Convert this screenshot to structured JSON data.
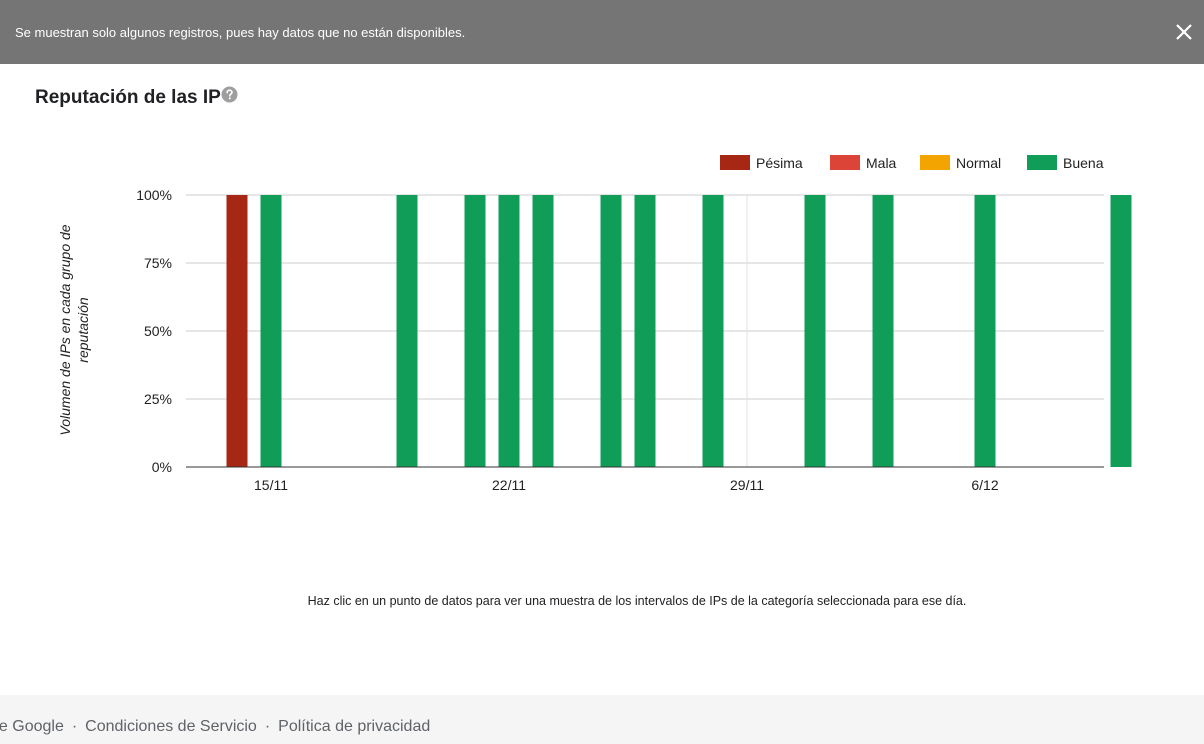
{
  "banner": {
    "message": "Se muestran solo algunos registros, pues hay datos que no están disponibles.",
    "close_icon": "close-icon"
  },
  "page": {
    "title": "Reputación de las IP",
    "help_icon": "help-circle-icon"
  },
  "chart_data": {
    "type": "bar",
    "stacked": true,
    "ylabel": "Volumen de IPs en cada grupo de reputación",
    "ylabel_lines": [
      "Volumen de IPs en cada grupo de",
      "reputación"
    ],
    "ylim": [
      0,
      100
    ],
    "yticks": [
      "0%",
      "25%",
      "50%",
      "75%",
      "100%"
    ],
    "ytick_values": [
      0,
      25,
      50,
      75,
      100
    ],
    "x_start": "13/11",
    "x_end": "8/12",
    "xtick_labels": [
      "15/11",
      "22/11",
      "29/11",
      "6/12"
    ],
    "xtick_dates": [
      "15/11",
      "22/11",
      "29/11",
      "6/12"
    ],
    "legend_position": "top-right",
    "series": [
      {
        "name": "Pésima",
        "color": "#a52714",
        "values": [
          {
            "date": "14/11",
            "value": 100
          }
        ]
      },
      {
        "name": "Mala",
        "color": "#db4437",
        "values": []
      },
      {
        "name": "Normal",
        "color": "#f4a400",
        "values": []
      },
      {
        "name": "Buena",
        "color": "#0f9d58",
        "values": [
          {
            "date": "15/11",
            "value": 100
          },
          {
            "date": "19/11",
            "value": 100
          },
          {
            "date": "21/11",
            "value": 100
          },
          {
            "date": "22/11",
            "value": 100
          },
          {
            "date": "23/11",
            "value": 100
          },
          {
            "date": "25/11",
            "value": 100
          },
          {
            "date": "26/11",
            "value": 100
          },
          {
            "date": "28/11",
            "value": 100
          },
          {
            "date": "1/12",
            "value": 100
          },
          {
            "date": "3/12",
            "value": 100
          },
          {
            "date": "6/12",
            "value": 100
          },
          {
            "date": "10/12",
            "value": 100
          }
        ]
      }
    ]
  },
  "hint": {
    "text": "Haz clic en un punto de datos para ver una muestra de los intervalos de IPs de la categoría seleccionada para ese día."
  },
  "footer": {
    "links": [
      "de Google",
      "Condiciones de Servicio",
      "Política de privacidad"
    ],
    "separator": "·"
  }
}
